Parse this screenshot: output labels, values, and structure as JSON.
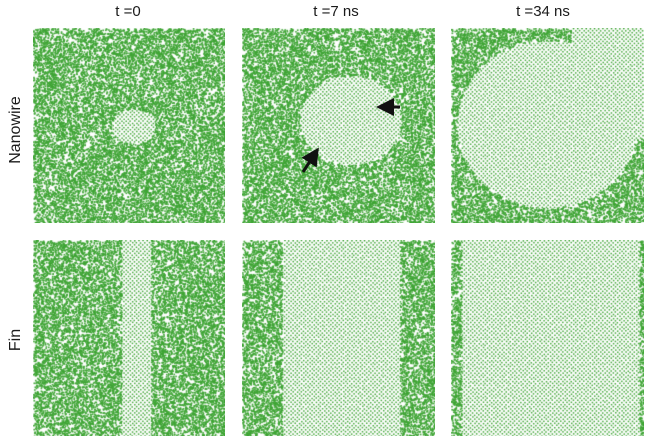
{
  "figure": {
    "columns": [
      {
        "label": "t =0"
      },
      {
        "label": "t =7 ns"
      },
      {
        "label": "t =34 ns"
      }
    ],
    "rows": [
      {
        "label": "Nanowire"
      },
      {
        "label": "Fin"
      }
    ],
    "atom_color": "#3fa535",
    "arrow_color": "#111111"
  }
}
